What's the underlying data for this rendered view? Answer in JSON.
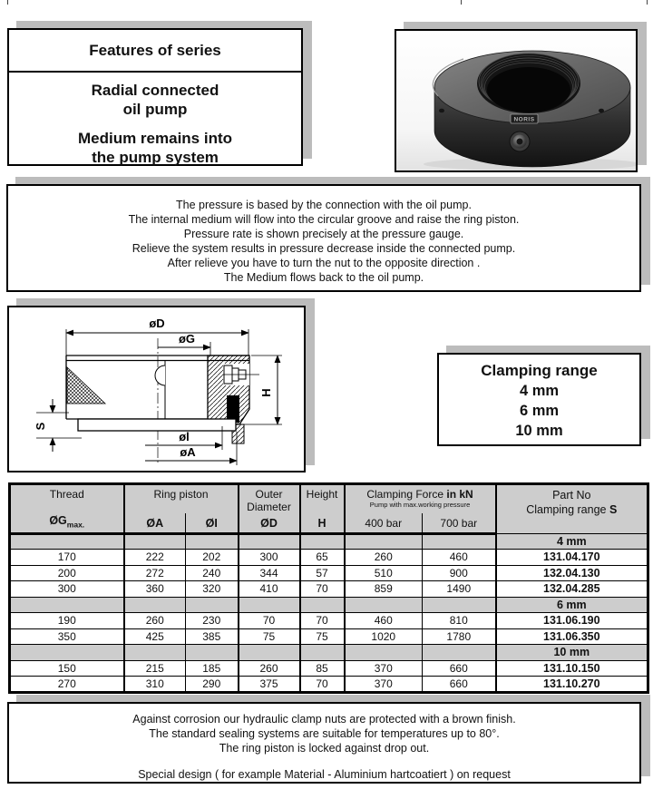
{
  "features": {
    "title": "Features of series",
    "feature1_line1": "Radial connected",
    "feature1_line2": "oil pump",
    "feature2_line1": "Medium remains into",
    "feature2_line2": "the pump system"
  },
  "photo": {
    "brand_label": "NORIS"
  },
  "description": {
    "lines": [
      "The pressure is based by the connection with the oil pump.",
      "The internal medium will flow into the circular groove and raise the ring piston.",
      "Pressure rate is shown precisely at the pressure gauge.",
      "Relieve the system results in pressure decrease inside the connected pump.",
      "After relieve you have to turn the nut to the opposite direction .",
      "The Medium flows back to the oil pump."
    ]
  },
  "diagram": {
    "labels": {
      "outer_diameter": "øD",
      "groove_diameter": "øG",
      "inner_diameter": "øl",
      "piston_diameter": "øA",
      "height": "H",
      "stroke": "S"
    }
  },
  "clamping_range": {
    "title": "Clamping range",
    "values": [
      "4 mm",
      "6 mm",
      "10 mm"
    ]
  },
  "table": {
    "col1_title": "Thread",
    "col1_symbol": "ØG",
    "col1_symbol_sub": "max.",
    "ring_piston_title": "Ring piston",
    "ring_a_symbol": "ØA",
    "ring_i_symbol": "ØI",
    "outer_diameter_line1": "Outer",
    "outer_diameter_line2": "Diameter",
    "outer_symbol": "ØD",
    "height_title": "Height",
    "height_symbol": "H",
    "force_title": "Clamping Force",
    "force_unit": "in kN",
    "force_subnote": "Pump with max.working pressure",
    "force_col1": "400 bar",
    "force_col2": "700 bar",
    "part_line1": "Part No",
    "part_line2": "Clamping range",
    "part_line2_suffix": "S",
    "groups": [
      {
        "label": "4 mm",
        "rows": [
          [
            "170",
            "222",
            "202",
            "300",
            "65",
            "260",
            "460",
            "131.04.170"
          ],
          [
            "200",
            "272",
            "240",
            "344",
            "57",
            "510",
            "900",
            "132.04.130"
          ],
          [
            "300",
            "360",
            "320",
            "410",
            "70",
            "859",
            "1490",
            "132.04.285"
          ]
        ]
      },
      {
        "label": "6 mm",
        "rows": [
          [
            "190",
            "260",
            "230",
            "70",
            "70",
            "460",
            "810",
            "131.06.190"
          ],
          [
            "350",
            "425",
            "385",
            "75",
            "75",
            "1020",
            "1780",
            "131.06.350"
          ]
        ]
      },
      {
        "label": "10 mm",
        "rows": [
          [
            "150",
            "215",
            "185",
            "260",
            "85",
            "370",
            "660",
            "131.10.150"
          ],
          [
            "270",
            "310",
            "290",
            "375",
            "70",
            "370",
            "660",
            "131.10.270"
          ]
        ]
      }
    ]
  },
  "notes": {
    "lines": [
      "Against corrosion our hydraulic clamp nuts are protected with a brown finish.",
      "The standard sealing systems are suitable for temperatures up to 80°.",
      "The ring piston is locked against drop out."
    ],
    "special": "Special design ( for example Material - Aluminium hartcoatiert ) on request"
  },
  "colors": {
    "box_shadow": "#bcbcbc",
    "table_header_bg": "#cdcdcd",
    "group_row_bg": "#cdcdcd",
    "border": "#000000"
  }
}
